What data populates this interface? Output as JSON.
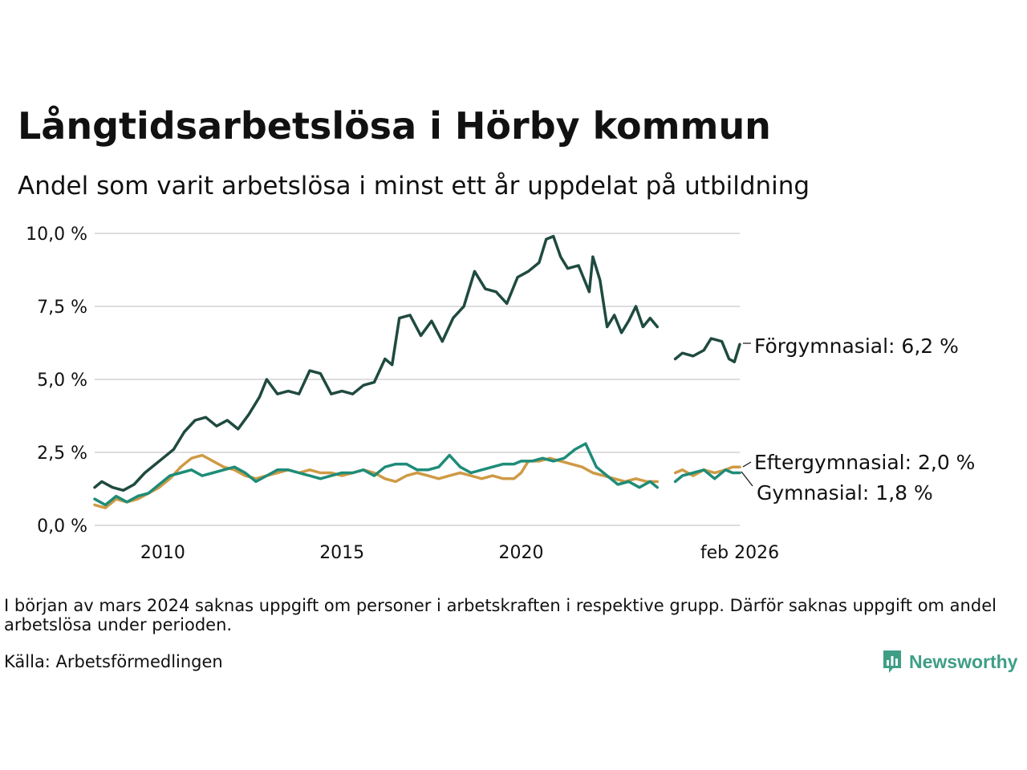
{
  "title": "Långtidsarbetslösa i Hörby kommun",
  "subtitle": "Andel som varit arbetslösa i minst ett år uppdelat på utbildning",
  "note": "I början av mars 2024 saknas uppgift om personer i arbetskraften i respektive grupp. Därför saknas uppgift om andel arbetslösa under perioden.",
  "source": "Källa: Arbetsförmedlingen",
  "logo": {
    "text": "Newsworthy",
    "icon": "bar-chart-speech-icon",
    "color": "#3e9e86"
  },
  "chart_data": {
    "type": "line",
    "x_unit": "year (decimal)",
    "xlim": [
      2008.1,
      2026.1
    ],
    "ylim": [
      0,
      10
    ],
    "y_ticks": [
      0,
      2.5,
      5,
      7.5,
      10
    ],
    "y_tick_labels": [
      "0,0 %",
      "2,5 %",
      "5,0 %",
      "7,5 %",
      "10,0 %"
    ],
    "x_ticks": [
      2010,
      2015,
      2020,
      2026.1
    ],
    "x_tick_labels": [
      "2010",
      "2015",
      "2020",
      "feb 2026"
    ],
    "grid": "horizontal",
    "legend": "direct labels at line ends (right)",
    "gap": [
      2023.9,
      2024.3
    ],
    "series": [
      {
        "name": "Förgymnasial",
        "end_label": "Förgymnasial: 6,2 %",
        "color": "#1f4a40",
        "points": [
          [
            2008.1,
            1.3
          ],
          [
            2008.3,
            1.5
          ],
          [
            2008.6,
            1.3
          ],
          [
            2008.9,
            1.2
          ],
          [
            2009.2,
            1.4
          ],
          [
            2009.5,
            1.8
          ],
          [
            2009.8,
            2.1
          ],
          [
            2010.0,
            2.3
          ],
          [
            2010.3,
            2.6
          ],
          [
            2010.6,
            3.2
          ],
          [
            2010.9,
            3.6
          ],
          [
            2011.2,
            3.7
          ],
          [
            2011.5,
            3.4
          ],
          [
            2011.8,
            3.6
          ],
          [
            2012.1,
            3.3
          ],
          [
            2012.4,
            3.8
          ],
          [
            2012.7,
            4.4
          ],
          [
            2012.9,
            5.0
          ],
          [
            2013.2,
            4.5
          ],
          [
            2013.5,
            4.6
          ],
          [
            2013.8,
            4.5
          ],
          [
            2014.1,
            5.3
          ],
          [
            2014.4,
            5.2
          ],
          [
            2014.7,
            4.5
          ],
          [
            2015.0,
            4.6
          ],
          [
            2015.3,
            4.5
          ],
          [
            2015.6,
            4.8
          ],
          [
            2015.9,
            4.9
          ],
          [
            2016.2,
            5.7
          ],
          [
            2016.4,
            5.5
          ],
          [
            2016.6,
            7.1
          ],
          [
            2016.9,
            7.2
          ],
          [
            2017.2,
            6.5
          ],
          [
            2017.5,
            7.0
          ],
          [
            2017.8,
            6.3
          ],
          [
            2018.1,
            7.1
          ],
          [
            2018.4,
            7.5
          ],
          [
            2018.7,
            8.7
          ],
          [
            2019.0,
            8.1
          ],
          [
            2019.3,
            8.0
          ],
          [
            2019.6,
            7.6
          ],
          [
            2019.9,
            8.5
          ],
          [
            2020.2,
            8.7
          ],
          [
            2020.5,
            9.0
          ],
          [
            2020.7,
            9.8
          ],
          [
            2020.9,
            9.9
          ],
          [
            2021.1,
            9.2
          ],
          [
            2021.3,
            8.8
          ],
          [
            2021.6,
            8.9
          ],
          [
            2021.9,
            8.0
          ],
          [
            2022.0,
            9.2
          ],
          [
            2022.2,
            8.4
          ],
          [
            2022.4,
            6.8
          ],
          [
            2022.6,
            7.2
          ],
          [
            2022.8,
            6.6
          ],
          [
            2023.0,
            7.0
          ],
          [
            2023.2,
            7.5
          ],
          [
            2023.4,
            6.8
          ],
          [
            2023.6,
            7.1
          ],
          [
            2023.8,
            6.8
          ],
          [
            2024.3,
            5.7
          ],
          [
            2024.5,
            5.9
          ],
          [
            2024.8,
            5.8
          ],
          [
            2025.1,
            6.0
          ],
          [
            2025.3,
            6.4
          ],
          [
            2025.6,
            6.3
          ],
          [
            2025.8,
            5.7
          ],
          [
            2025.95,
            5.6
          ],
          [
            2026.1,
            6.2
          ]
        ]
      },
      {
        "name": "Eftergymnasial",
        "end_label": "Eftergymnasial: 2,0 %",
        "color": "#cf9a45",
        "points": [
          [
            2008.1,
            0.7
          ],
          [
            2008.4,
            0.6
          ],
          [
            2008.7,
            0.9
          ],
          [
            2009.0,
            0.8
          ],
          [
            2009.3,
            0.9
          ],
          [
            2009.6,
            1.1
          ],
          [
            2009.9,
            1.3
          ],
          [
            2010.2,
            1.6
          ],
          [
            2010.5,
            2.0
          ],
          [
            2010.8,
            2.3
          ],
          [
            2011.1,
            2.4
          ],
          [
            2011.4,
            2.2
          ],
          [
            2011.7,
            2.0
          ],
          [
            2012.0,
            1.9
          ],
          [
            2012.3,
            1.7
          ],
          [
            2012.6,
            1.6
          ],
          [
            2012.9,
            1.7
          ],
          [
            2013.2,
            1.8
          ],
          [
            2013.5,
            1.9
          ],
          [
            2013.8,
            1.8
          ],
          [
            2014.1,
            1.9
          ],
          [
            2014.4,
            1.8
          ],
          [
            2014.7,
            1.8
          ],
          [
            2015.0,
            1.7
          ],
          [
            2015.3,
            1.8
          ],
          [
            2015.6,
            1.9
          ],
          [
            2015.9,
            1.8
          ],
          [
            2016.2,
            1.6
          ],
          [
            2016.5,
            1.5
          ],
          [
            2016.8,
            1.7
          ],
          [
            2017.1,
            1.8
          ],
          [
            2017.4,
            1.7
          ],
          [
            2017.7,
            1.6
          ],
          [
            2018.0,
            1.7
          ],
          [
            2018.3,
            1.8
          ],
          [
            2018.6,
            1.7
          ],
          [
            2018.9,
            1.6
          ],
          [
            2019.2,
            1.7
          ],
          [
            2019.5,
            1.6
          ],
          [
            2019.8,
            1.6
          ],
          [
            2020.0,
            1.8
          ],
          [
            2020.2,
            2.2
          ],
          [
            2020.5,
            2.2
          ],
          [
            2020.8,
            2.3
          ],
          [
            2021.1,
            2.2
          ],
          [
            2021.4,
            2.1
          ],
          [
            2021.7,
            2.0
          ],
          [
            2022.0,
            1.8
          ],
          [
            2022.3,
            1.7
          ],
          [
            2022.6,
            1.6
          ],
          [
            2022.9,
            1.5
          ],
          [
            2023.2,
            1.6
          ],
          [
            2023.5,
            1.5
          ],
          [
            2023.8,
            1.5
          ],
          [
            2024.3,
            1.8
          ],
          [
            2024.5,
            1.9
          ],
          [
            2024.8,
            1.7
          ],
          [
            2025.1,
            1.9
          ],
          [
            2025.4,
            1.8
          ],
          [
            2025.7,
            1.9
          ],
          [
            2025.9,
            2.0
          ],
          [
            2026.1,
            2.0
          ]
        ]
      },
      {
        "name": "Gymnasial",
        "end_label": "Gymnasial: 1,8 %",
        "color": "#1e8c78",
        "points": [
          [
            2008.1,
            0.9
          ],
          [
            2008.4,
            0.7
          ],
          [
            2008.7,
            1.0
          ],
          [
            2009.0,
            0.8
          ],
          [
            2009.3,
            1.0
          ],
          [
            2009.6,
            1.1
          ],
          [
            2009.9,
            1.4
          ],
          [
            2010.2,
            1.7
          ],
          [
            2010.5,
            1.8
          ],
          [
            2010.8,
            1.9
          ],
          [
            2011.1,
            1.7
          ],
          [
            2011.4,
            1.8
          ],
          [
            2011.7,
            1.9
          ],
          [
            2012.0,
            2.0
          ],
          [
            2012.3,
            1.8
          ],
          [
            2012.6,
            1.5
          ],
          [
            2012.9,
            1.7
          ],
          [
            2013.2,
            1.9
          ],
          [
            2013.5,
            1.9
          ],
          [
            2013.8,
            1.8
          ],
          [
            2014.1,
            1.7
          ],
          [
            2014.4,
            1.6
          ],
          [
            2014.7,
            1.7
          ],
          [
            2015.0,
            1.8
          ],
          [
            2015.3,
            1.8
          ],
          [
            2015.6,
            1.9
          ],
          [
            2015.9,
            1.7
          ],
          [
            2016.2,
            2.0
          ],
          [
            2016.5,
            2.1
          ],
          [
            2016.8,
            2.1
          ],
          [
            2017.1,
            1.9
          ],
          [
            2017.4,
            1.9
          ],
          [
            2017.7,
            2.0
          ],
          [
            2018.0,
            2.4
          ],
          [
            2018.3,
            2.0
          ],
          [
            2018.6,
            1.8
          ],
          [
            2018.9,
            1.9
          ],
          [
            2019.2,
            2.0
          ],
          [
            2019.5,
            2.1
          ],
          [
            2019.8,
            2.1
          ],
          [
            2020.0,
            2.2
          ],
          [
            2020.3,
            2.2
          ],
          [
            2020.6,
            2.3
          ],
          [
            2020.9,
            2.2
          ],
          [
            2021.2,
            2.3
          ],
          [
            2021.5,
            2.6
          ],
          [
            2021.8,
            2.8
          ],
          [
            2022.1,
            2.0
          ],
          [
            2022.4,
            1.7
          ],
          [
            2022.7,
            1.4
          ],
          [
            2023.0,
            1.5
          ],
          [
            2023.3,
            1.3
          ],
          [
            2023.6,
            1.5
          ],
          [
            2023.8,
            1.3
          ],
          [
            2024.3,
            1.5
          ],
          [
            2024.5,
            1.7
          ],
          [
            2024.8,
            1.8
          ],
          [
            2025.1,
            1.9
          ],
          [
            2025.4,
            1.6
          ],
          [
            2025.7,
            1.9
          ],
          [
            2025.9,
            1.8
          ],
          [
            2026.1,
            1.8
          ]
        ]
      }
    ]
  }
}
